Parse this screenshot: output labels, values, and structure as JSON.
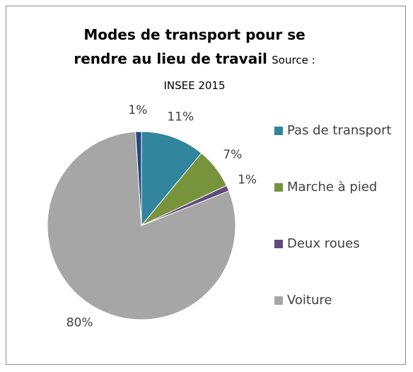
{
  "chart_data": {
    "type": "pie",
    "title": "Modes de transport pour se rendre au lieu de travail",
    "subtitle": "Source : INSEE 2015",
    "categories": [
      "Pas de transport",
      "Marche à pied",
      "Deux roues",
      "Voiture",
      null
    ],
    "values": [
      11,
      7,
      1,
      80,
      1
    ],
    "value_labels": [
      "11%",
      "7%",
      "1%",
      "80%",
      "1%"
    ],
    "colors": [
      "#31859c",
      "#77933c",
      "#604a7b",
      "#a6a6a6",
      "#1f497d"
    ],
    "legend": "right"
  }
}
